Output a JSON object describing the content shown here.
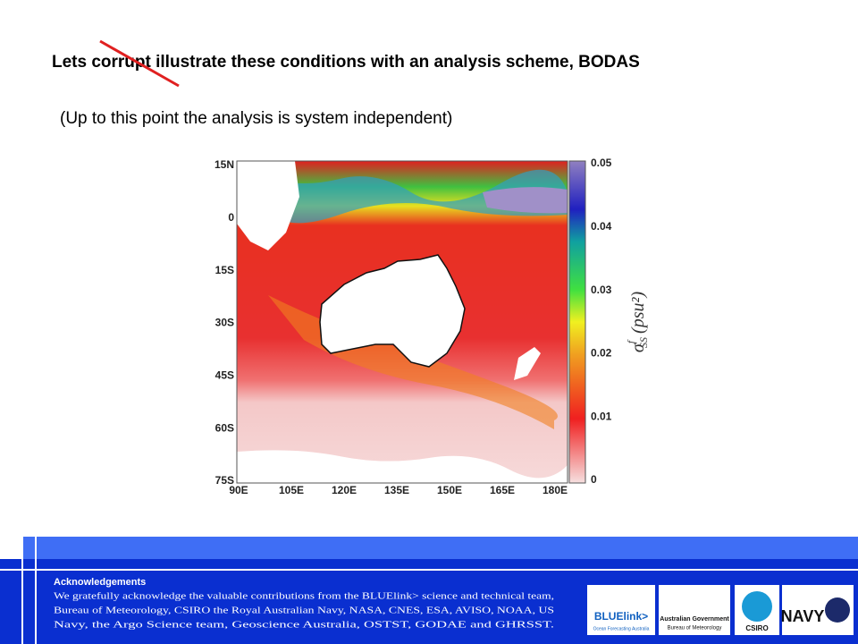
{
  "slide": {
    "title": "Lets corrupt illustrate these conditions with an analysis scheme, BODAS",
    "subtitle": "(Up to this point the analysis is system independent)",
    "map": {
      "lat_labels": [
        "15N",
        "0",
        "15S",
        "30S",
        "45S",
        "60S",
        "75S"
      ],
      "lon_labels": [
        "90E",
        "105E",
        "120E",
        "135E",
        "150E",
        "165E",
        "180E"
      ],
      "colorbar_labels": [
        "0.05",
        "0.04",
        "0.03",
        "0.02",
        "0.01",
        "0"
      ],
      "colorbar_symbol": "σ",
      "colorbar_superscript": "f",
      "colorbar_subscript": "SS",
      "colorbar_unit": "(psu²)"
    },
    "footer": {
      "heading": "Acknowledgements",
      "lines": [
        "We gratefully acknowledge the valuable contributions from the BLUElink> science and technical team,",
        "Bureau of Meteorology, CSIRO the Royal Australian Navy, NASA, CNES, ESA, AVISO, NOAA, US",
        "Navy, the Argo Science team, Geoscience Australia, OSTST, GODAE and GHRSST."
      ],
      "logos": {
        "bluelink": "BLUElink>",
        "bluelink_sub": "Ocean Forecasting Australia",
        "gov": "Australian Government",
        "gov_sub": "Bureau of Meteorology",
        "csiro": "CSIRO",
        "navy": "NAVY"
      }
    }
  }
}
